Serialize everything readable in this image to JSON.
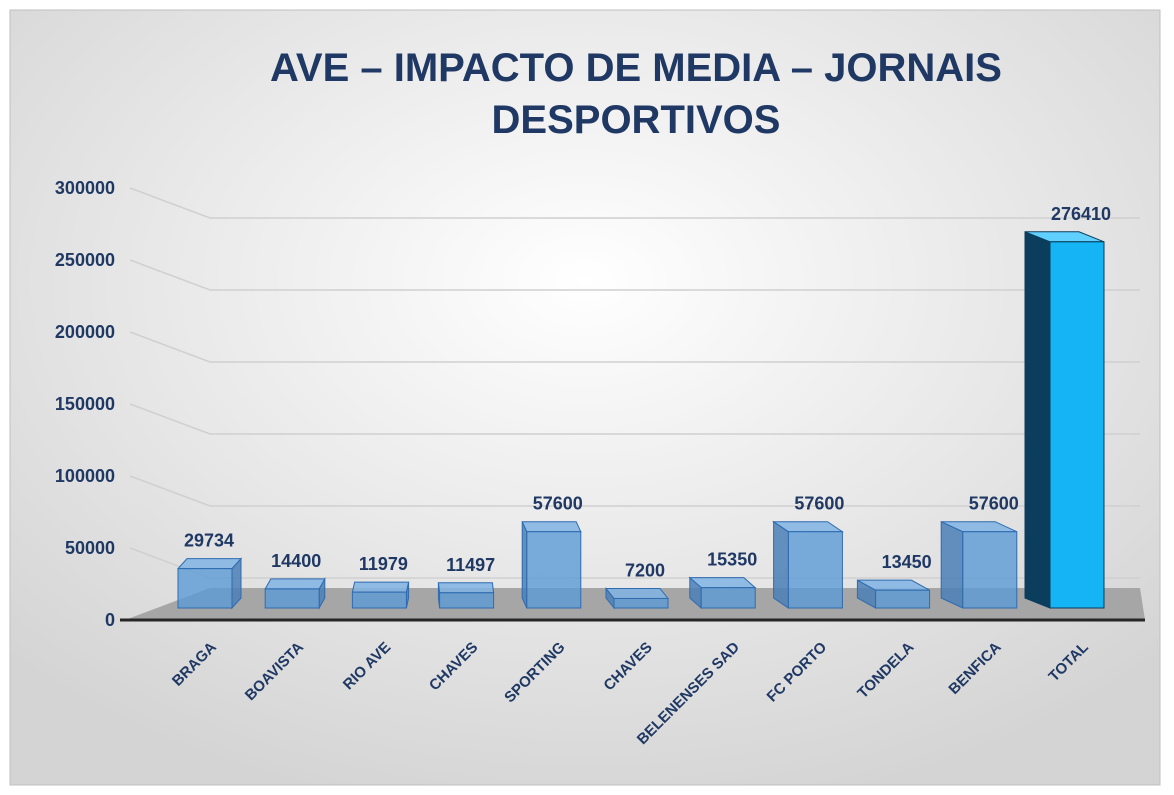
{
  "chart_data": {
    "type": "bar3d",
    "title": "AVE – IMPACTO DE MEDIA – JORNAIS DESPORTIVOS",
    "categories": [
      "BRAGA",
      "BOAVISTA",
      "RIO AVE",
      "CHAVES",
      "SPORTING",
      "CHAVES",
      "BELENENSES SAD",
      "FC PORTO",
      "TONDELA",
      "BENFICA",
      "TOTAL"
    ],
    "values": [
      29734,
      14400,
      11979,
      11497,
      57600,
      7200,
      15350,
      57600,
      13450,
      57600,
      276410
    ],
    "colors": [
      "#5b9bd5",
      "#5b9bd5",
      "#5b9bd5",
      "#5b9bd5",
      "#5b9bd5",
      "#5b9bd5",
      "#5b9bd5",
      "#5b9bd5",
      "#5b9bd5",
      "#5b9bd5",
      "#14b4f5"
    ],
    "ylim": [
      0,
      300000
    ],
    "yticks": [
      0,
      50000,
      100000,
      150000,
      200000,
      250000,
      300000
    ],
    "grid": true
  }
}
